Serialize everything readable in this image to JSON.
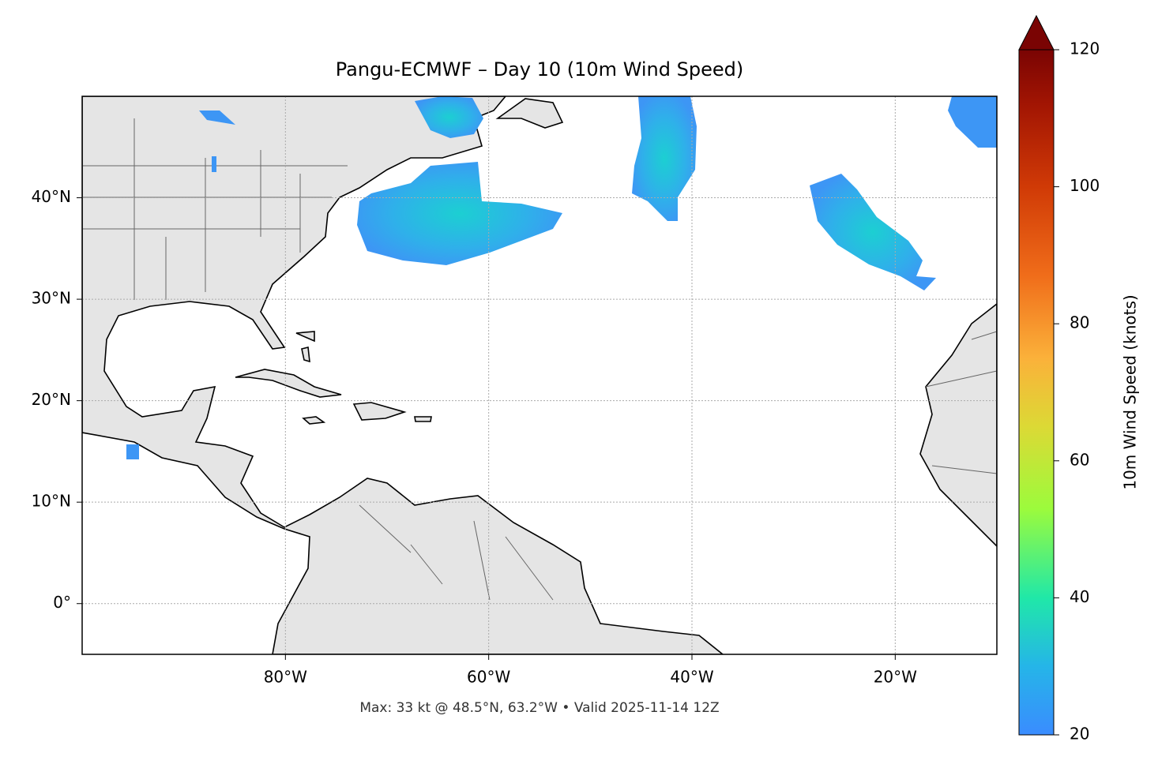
{
  "chart_data": {
    "type": "map",
    "title": "Pangu-ECMWF – Day 10 (10m Wind Speed)",
    "footer": "Max: 33 kt @ 48.5°N, 63.2°W • Valid 2025-11-14 12Z",
    "xlim": [
      -100,
      -10
    ],
    "ylim": [
      -5,
      50
    ],
    "xticks": [
      {
        "value": -80,
        "label": "80°W"
      },
      {
        "value": -60,
        "label": "60°W"
      },
      {
        "value": -40,
        "label": "40°W"
      },
      {
        "value": -20,
        "label": "20°W"
      }
    ],
    "yticks": [
      {
        "value": 0,
        "label": "0°"
      },
      {
        "value": 10,
        "label": "10°N"
      },
      {
        "value": 20,
        "label": "20°N"
      },
      {
        "value": 30,
        "label": "30°N"
      },
      {
        "value": 40,
        "label": "40°N"
      }
    ],
    "grid": true,
    "colorbar": {
      "label": "10m Wind Speed (knots)",
      "lim": [
        20,
        120
      ],
      "ticks": [
        20,
        40,
        60,
        80,
        100,
        120
      ]
    }
  }
}
